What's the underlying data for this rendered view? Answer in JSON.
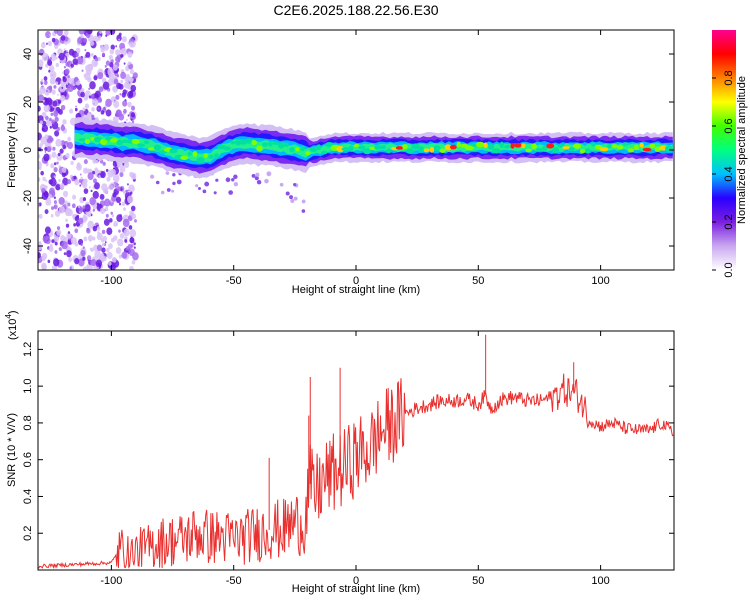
{
  "title": "C2E6.2025.188.22.56.E30",
  "chart_data": [
    {
      "type": "heatmap",
      "xlabel": "Height of straight line (km)",
      "ylabel": "Frequency (Hz)",
      "xlim": [
        -130,
        130
      ],
      "ylim": [
        -50,
        50
      ],
      "xticks": [
        -100,
        -50,
        0,
        50,
        100
      ],
      "yticks": [
        -40,
        -20,
        0,
        20,
        40
      ],
      "colorbar": {
        "label": "Normalized spectral amplitude",
        "range": [
          0,
          1
        ],
        "ticks": [
          0.0,
          0.2,
          0.4,
          0.6,
          0.8
        ],
        "colors": [
          "#ffffff",
          "#c9a7f0",
          "#7b1fe0",
          "#2a00ff",
          "#00c0ff",
          "#00ff80",
          "#40ff00",
          "#ffff00",
          "#ff8000",
          "#ff0000",
          "#ff0090"
        ]
      },
      "ridge": {
        "x": [
          -112,
          -100,
          -95,
          -90,
          -85,
          -80,
          -75,
          -70,
          -65,
          -60,
          -55,
          -50,
          -45,
          -40,
          -35,
          -30,
          -25,
          -20,
          -15,
          -10,
          -5,
          0,
          10,
          20,
          30,
          40,
          50,
          60,
          70,
          80,
          90,
          100,
          110,
          120,
          130
        ],
        "y": [
          5,
          4,
          3,
          3,
          2,
          1,
          -1,
          -2,
          -3,
          -3,
          0,
          2,
          3,
          2,
          2,
          1,
          0,
          -1,
          0,
          1,
          1,
          1,
          1,
          1,
          1,
          1,
          1,
          1,
          1,
          1,
          1,
          1,
          1,
          1,
          1
        ]
      }
    },
    {
      "type": "line",
      "xlabel": "Height of straight line (km)",
      "ylabel": "SNR (10 * V/V)",
      "multiplier": "(x10",
      "multiplier_exp": "4",
      "multiplier_close": ")",
      "xlim": [
        -130,
        130
      ],
      "ylim": [
        0,
        1.3
      ],
      "xticks": [
        -100,
        -50,
        0,
        50,
        100
      ],
      "yticks": [
        0.2,
        0.4,
        0.6,
        0.8,
        1.0,
        1.2
      ],
      "series": [
        {
          "color": "#e8312f",
          "x": [
            -130,
            -100,
            -96,
            -94,
            -90,
            -85,
            -80,
            -75,
            -70,
            -65,
            -60,
            -55,
            -50,
            -45,
            -40,
            -35,
            -30,
            -25,
            -21,
            -19,
            -17,
            -15,
            -12,
            -10,
            -5,
            0,
            5,
            10,
            15,
            20,
            25,
            30,
            35,
            40,
            45,
            50,
            53,
            55,
            60,
            65,
            70,
            75,
            80,
            85,
            90,
            93,
            95,
            100,
            105,
            110,
            115,
            120,
            125,
            130
          ],
          "y": [
            0.02,
            0.04,
            0.12,
            0.07,
            0.1,
            0.12,
            0.15,
            0.16,
            0.17,
            0.2,
            0.18,
            0.18,
            0.17,
            0.18,
            0.2,
            0.22,
            0.22,
            0.26,
            0.25,
            0.48,
            0.4,
            0.45,
            0.5,
            0.52,
            0.55,
            0.62,
            0.65,
            0.75,
            0.8,
            0.85,
            0.88,
            0.9,
            0.92,
            0.92,
            0.93,
            0.9,
            0.95,
            0.88,
            0.93,
            0.94,
            0.92,
            0.92,
            0.94,
            0.98,
            0.96,
            0.9,
            0.82,
            0.78,
            0.8,
            0.77,
            0.76,
            0.76,
            0.8,
            0.74
          ]
        }
      ]
    }
  ]
}
